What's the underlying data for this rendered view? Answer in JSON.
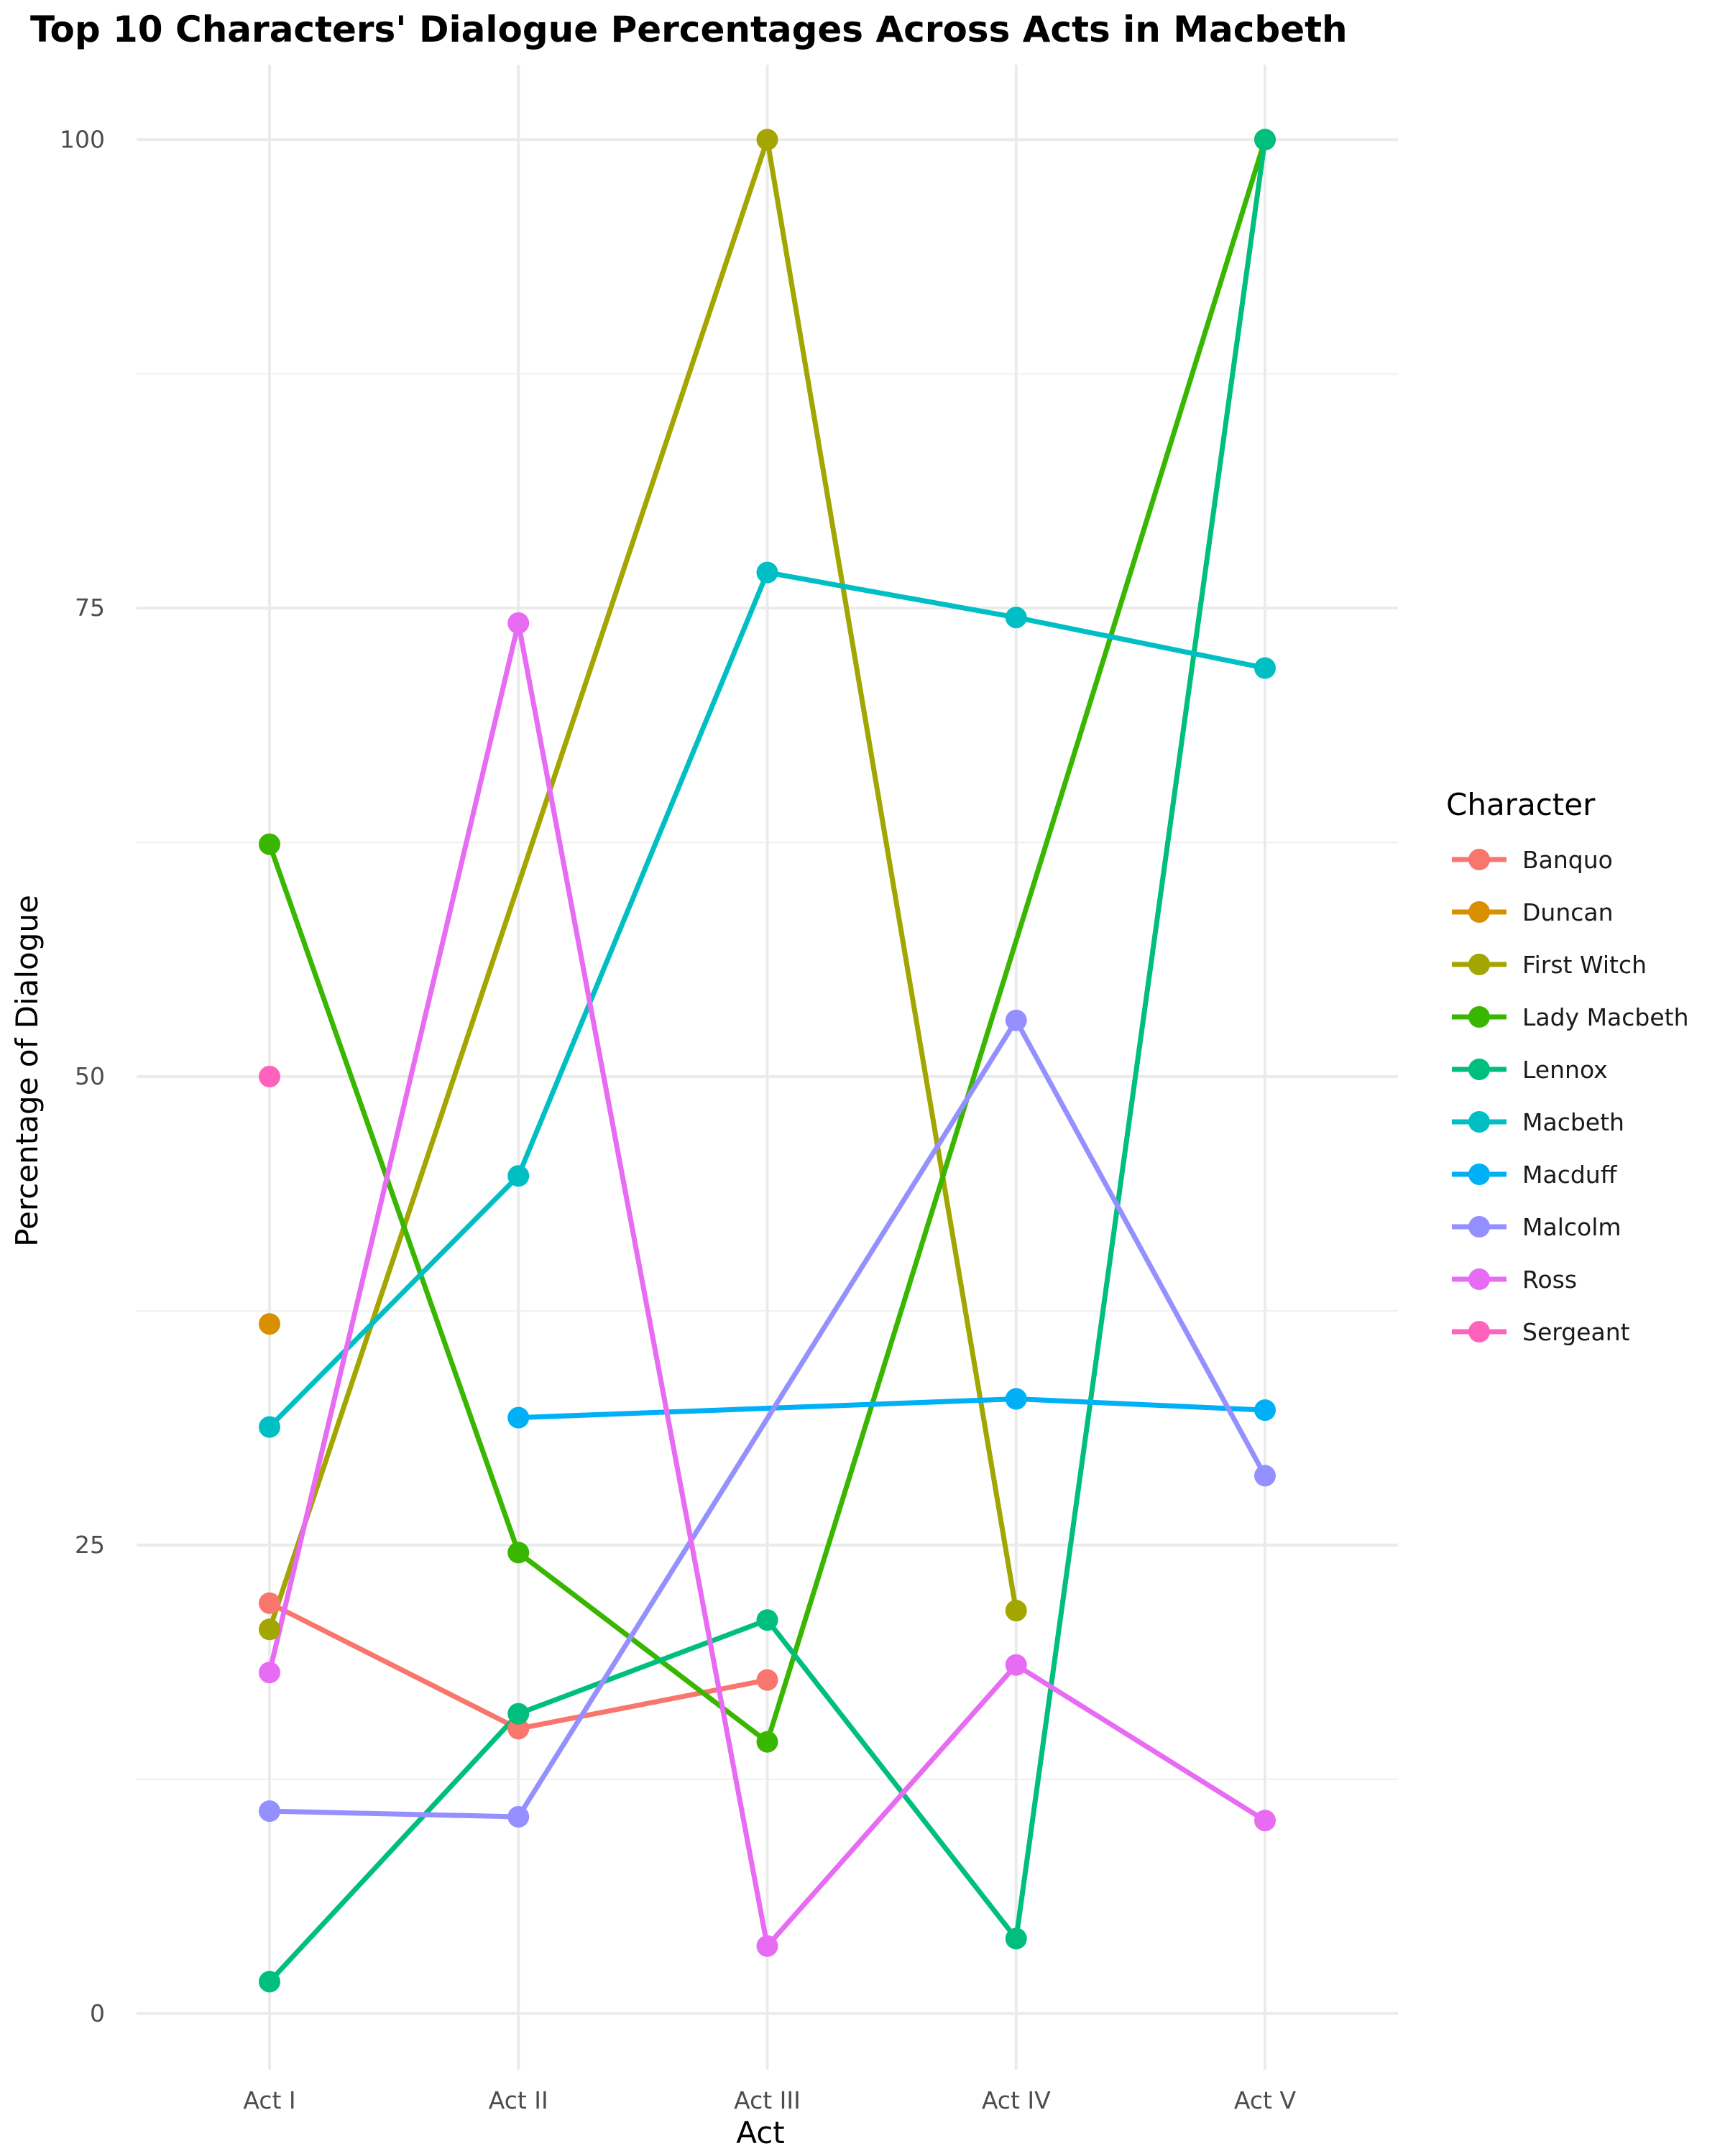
{
  "chart_data": {
    "type": "line",
    "title": "Top 10 Characters' Dialogue Percentages Across Acts in Macbeth",
    "xlabel": "Act",
    "ylabel": "Percentage of Dialogue",
    "categories": [
      "Act I",
      "Act II",
      "Act III",
      "Act IV",
      "Act V"
    ],
    "ylim": [
      -3,
      104
    ],
    "yticks": [
      0,
      25,
      50,
      75,
      100
    ],
    "grid": true,
    "legend_title": "Character",
    "legend_position": "right",
    "series": [
      {
        "name": "Banquo",
        "color": "#F8766D",
        "values": [
          21.9,
          15.2,
          17.8,
          null,
          null
        ]
      },
      {
        "name": "Duncan",
        "color": "#D89000",
        "values": [
          36.8,
          null,
          null,
          null,
          null
        ]
      },
      {
        "name": "First Witch",
        "color": "#A3A500",
        "values": [
          20.5,
          null,
          100,
          21.5,
          null
        ]
      },
      {
        "name": "Lady Macbeth",
        "color": "#39B600",
        "values": [
          62.4,
          24.6,
          14.5,
          null,
          100
        ]
      },
      {
        "name": "Lennox",
        "color": "#00BF7D",
        "values": [
          1.7,
          16,
          21,
          4,
          100
        ]
      },
      {
        "name": "Macbeth",
        "color": "#00BFC4",
        "values": [
          31.3,
          44.7,
          76.9,
          74.5,
          71.8
        ]
      },
      {
        "name": "Macduff",
        "color": "#00B0F6",
        "values": [
          null,
          31.8,
          null,
          32.8,
          32.2
        ]
      },
      {
        "name": "Malcolm",
        "color": "#9590FF",
        "values": [
          10.8,
          10.5,
          null,
          53,
          28.7
        ]
      },
      {
        "name": "Ross",
        "color": "#E76BF3",
        "values": [
          18.2,
          74.2,
          3.6,
          18.6,
          10.3
        ]
      },
      {
        "name": "Sergeant",
        "color": "#FF62BC",
        "values": [
          50,
          null,
          null,
          null,
          null
        ]
      }
    ]
  }
}
